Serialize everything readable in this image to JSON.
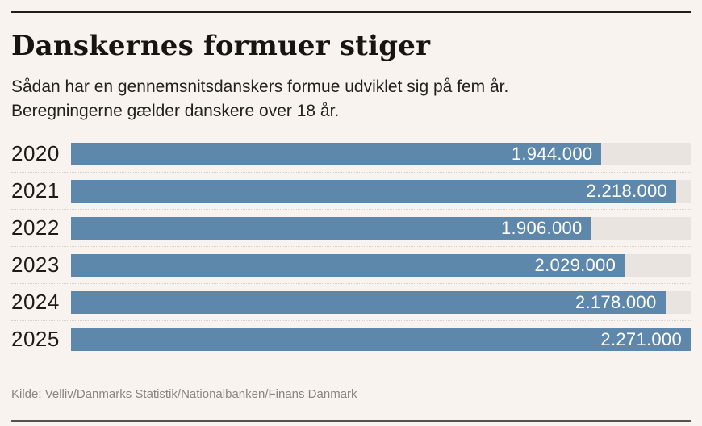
{
  "chart": {
    "title": "Danskernes formuer stiger",
    "subtitle_line1": "Sådan har en gennemsnitsdanskers formue udviklet sig på fem år.",
    "subtitle_line2": "Beregningerne gælder danskere over 18 år.",
    "source": "Kilde: Velliv/Danmarks Statistik/Nationalbanken/Finans Danmark"
  },
  "chart_data": {
    "type": "bar",
    "orientation": "horizontal",
    "title": "Danskernes formuer stiger",
    "categories": [
      "2020",
      "2021",
      "2022",
      "2023",
      "2024",
      "2025"
    ],
    "values": [
      1944000,
      2218000,
      1906000,
      2029000,
      2178000,
      2271000
    ],
    "value_labels": [
      "1.944.000",
      "2.218.000",
      "1.906.000",
      "2.029.000",
      "2.178.000",
      "2.271.000"
    ],
    "xlabel": "",
    "ylabel": "",
    "xlim": [
      0,
      2271000
    ],
    "grid": false,
    "legend": false,
    "value_label_position": "inside-end"
  },
  "colors": {
    "background": "#f9f3ef",
    "bar": "#5d87ab",
    "track": "#e9e4e0",
    "text": "#1d1a17",
    "value_text": "#ffffff",
    "source_text": "#8b8580",
    "rule_top": "#221e1a",
    "rule_bottom": "#57524e",
    "separator": "#d6d0ca"
  }
}
